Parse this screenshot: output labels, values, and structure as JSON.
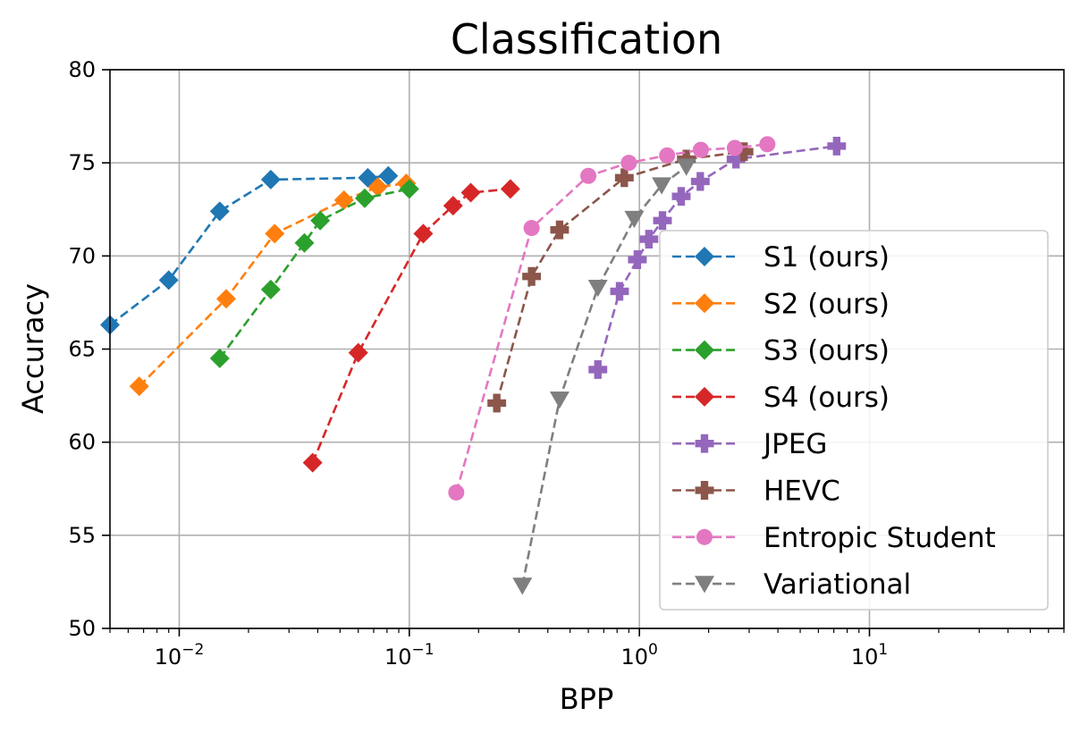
{
  "chart_data": {
    "type": "line",
    "title": "Classification",
    "xlabel": "BPP",
    "ylabel": "Accuracy",
    "xscale": "log",
    "xlim": [
      0.005,
      70
    ],
    "ylim": [
      50,
      80
    ],
    "grid": true,
    "legend_position": "right",
    "x_ticks": [
      0.01,
      0.1,
      1,
      10
    ],
    "x_tick_labels": [
      {
        "base": "10",
        "exp": "−2"
      },
      {
        "base": "10",
        "exp": "−1"
      },
      {
        "base": "10",
        "exp": "0"
      },
      {
        "base": "10",
        "exp": "1"
      }
    ],
    "y_ticks": [
      50,
      55,
      60,
      65,
      70,
      75,
      80
    ],
    "y_tick_labels": [
      "50",
      "55",
      "60",
      "65",
      "70",
      "75",
      "80"
    ],
    "series": [
      {
        "name": "S1 (ours)",
        "color": "#1f77b4",
        "marker": "diamond",
        "x": [
          0.005,
          0.009,
          0.015,
          0.025,
          0.066,
          0.081
        ],
        "y": [
          66.3,
          68.7,
          72.4,
          74.1,
          74.2,
          74.3
        ]
      },
      {
        "name": "S2 (ours)",
        "color": "#ff7f0e",
        "marker": "diamond",
        "x": [
          0.0067,
          0.016,
          0.026,
          0.052,
          0.073,
          0.097
        ],
        "y": [
          63.0,
          67.7,
          71.2,
          73.0,
          73.7,
          73.9
        ]
      },
      {
        "name": "S3 (ours)",
        "color": "#2ca02c",
        "marker": "diamond",
        "x": [
          0.015,
          0.025,
          0.035,
          0.041,
          0.064,
          0.1
        ],
        "y": [
          64.5,
          68.2,
          70.7,
          71.9,
          73.1,
          73.6
        ]
      },
      {
        "name": "S4 (ours)",
        "color": "#d62728",
        "marker": "diamond",
        "x": [
          0.038,
          0.06,
          0.115,
          0.155,
          0.185,
          0.275
        ],
        "y": [
          58.9,
          64.8,
          71.2,
          72.7,
          73.4,
          73.6
        ]
      },
      {
        "name": "JPEG",
        "color": "#9467bd",
        "marker": "plus",
        "x": [
          0.66,
          0.82,
          0.98,
          1.1,
          1.26,
          1.52,
          1.84,
          2.63,
          7.2
        ],
        "y": [
          63.9,
          68.1,
          69.8,
          70.9,
          71.9,
          73.2,
          74.0,
          75.2,
          75.9
        ]
      },
      {
        "name": "HEVC",
        "color": "#8c564b",
        "marker": "plus",
        "x": [
          0.24,
          0.34,
          0.45,
          0.86,
          1.6,
          2.85
        ],
        "y": [
          62.1,
          68.9,
          71.4,
          74.2,
          75.2,
          75.6
        ]
      },
      {
        "name": "Entropic Student",
        "color": "#e377c2",
        "marker": "circle",
        "x": [
          0.16,
          0.34,
          0.6,
          0.9,
          1.32,
          1.85,
          2.6,
          3.6
        ],
        "y": [
          57.3,
          71.5,
          74.3,
          75.0,
          75.4,
          75.7,
          75.8,
          76.0
        ]
      },
      {
        "name": "Variational",
        "color": "#7f7f7f",
        "marker": "triangle-down",
        "x": [
          0.31,
          0.45,
          0.66,
          0.95,
          1.25,
          1.6
        ],
        "y": [
          52.3,
          62.3,
          68.3,
          72.0,
          73.8,
          74.8
        ]
      }
    ]
  }
}
